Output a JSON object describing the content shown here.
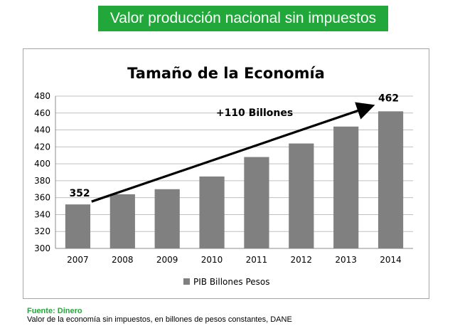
{
  "banner": {
    "text": "Valor producción nacional sin impuestos"
  },
  "chart_data": {
    "type": "bar",
    "title": "Tamaño de la Economía",
    "xlabel": "",
    "ylabel": "",
    "categories": [
      "2007",
      "2008",
      "2009",
      "2010",
      "2011",
      "2012",
      "2013",
      "2014"
    ],
    "series": [
      {
        "name": "PIB Billones Pesos",
        "values": [
          352,
          364,
          370,
          385,
          408,
          424,
          444,
          462
        ]
      }
    ],
    "ylim": [
      300,
      480
    ],
    "yticks": [
      300,
      320,
      340,
      360,
      380,
      400,
      420,
      440,
      460,
      480
    ],
    "grid": true,
    "legend_position": "bottom",
    "bar_color": "#808080",
    "annotations": {
      "start_label": "352",
      "end_label": "462",
      "trend_label": "+110 Billones"
    }
  },
  "footer": {
    "source": "Fuente: Dinero",
    "description": "Valor de la economía sin impuestos, en billones de pesos constantes, DANE"
  }
}
